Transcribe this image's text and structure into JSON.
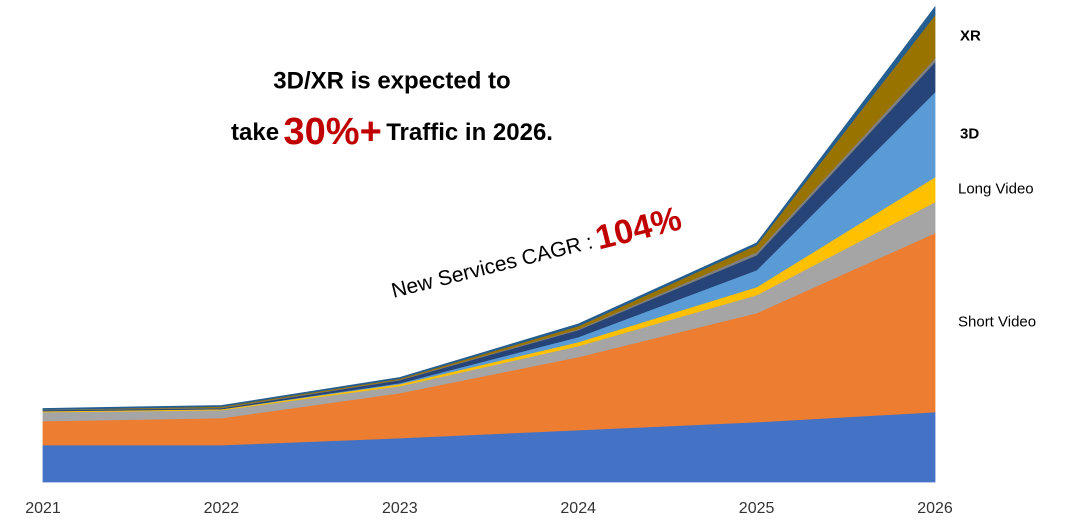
{
  "chart_data": {
    "type": "stacked_area",
    "annotations": {
      "headline_line1": "3D/XR is expected to",
      "headline_pre": "take",
      "headline_highlight": "30%+",
      "headline_post": "Traffic in 2026.",
      "cagr_label": "New Services CAGR :",
      "cagr_value": "104%"
    },
    "categories": [
      "2021",
      "2022",
      "2023",
      "2024",
      "2025",
      "2026"
    ],
    "ylim": [
      0,
      480
    ],
    "series": [
      {
        "color": "#4472c4",
        "values": [
          37,
          37,
          44,
          52,
          60,
          70
        ]
      },
      {
        "name": "Short Video",
        "color": "#ed7d31",
        "values": [
          24,
          27,
          45,
          73,
          109,
          179
        ]
      },
      {
        "color": "#a5a5a5",
        "values": [
          9,
          8,
          7,
          11,
          18,
          31
        ]
      },
      {
        "name": "Long Video",
        "color": "#ffc000",
        "values": [
          1,
          1,
          2,
          4,
          8,
          25
        ]
      },
      {
        "name": "3D",
        "color": "#5b9bd5",
        "values": [
          0,
          0,
          1,
          5,
          17,
          85
        ]
      },
      {
        "color": "#264478",
        "values": [
          1,
          1,
          3,
          7,
          15,
          30
        ]
      },
      {
        "color": "#7f7f7f",
        "values": [
          0.5,
          0.5,
          0.5,
          1,
          3,
          4
        ]
      },
      {
        "name": "XR",
        "color": "#997300",
        "values": [
          0,
          1,
          1,
          3,
          7,
          43
        ]
      },
      {
        "color": "#255e91",
        "values": [
          1,
          1,
          1,
          2,
          2,
          8
        ]
      }
    ]
  }
}
